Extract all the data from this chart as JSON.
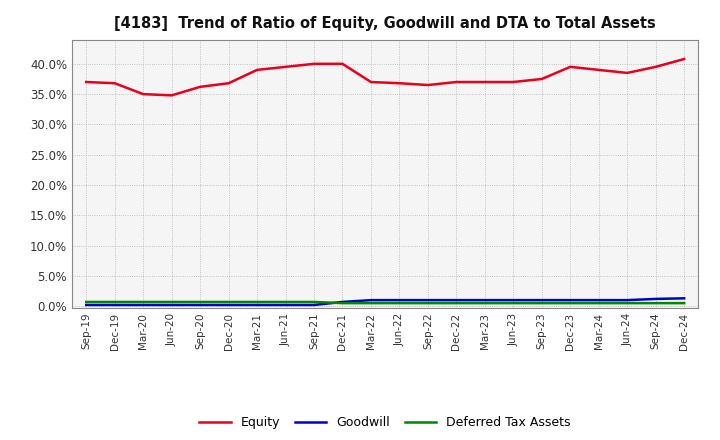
{
  "title": "[4183]  Trend of Ratio of Equity, Goodwill and DTA to Total Assets",
  "x_labels": [
    "Sep-19",
    "Dec-19",
    "Mar-20",
    "Jun-20",
    "Sep-20",
    "Dec-20",
    "Mar-21",
    "Jun-21",
    "Sep-21",
    "Dec-21",
    "Mar-22",
    "Jun-22",
    "Sep-22",
    "Dec-22",
    "Mar-23",
    "Jun-23",
    "Sep-23",
    "Dec-23",
    "Mar-24",
    "Jun-24",
    "Sep-24",
    "Dec-24"
  ],
  "equity": [
    0.37,
    0.368,
    0.35,
    0.348,
    0.362,
    0.368,
    0.39,
    0.395,
    0.4,
    0.4,
    0.37,
    0.368,
    0.365,
    0.37,
    0.37,
    0.37,
    0.375,
    0.395,
    0.39,
    0.385,
    0.395,
    0.408
  ],
  "goodwill": [
    0.002,
    0.002,
    0.002,
    0.002,
    0.002,
    0.002,
    0.002,
    0.002,
    0.002,
    0.007,
    0.01,
    0.01,
    0.01,
    0.01,
    0.01,
    0.01,
    0.01,
    0.01,
    0.01,
    0.01,
    0.012,
    0.013
  ],
  "dta": [
    0.007,
    0.007,
    0.007,
    0.007,
    0.007,
    0.007,
    0.007,
    0.007,
    0.007,
    0.005,
    0.005,
    0.005,
    0.005,
    0.005,
    0.005,
    0.005,
    0.005,
    0.005,
    0.005,
    0.005,
    0.005,
    0.005
  ],
  "equity_color": "#e8001c",
  "goodwill_color": "#0000cc",
  "dta_color": "#008800",
  "background_color": "#ffffff",
  "plot_bg_color": "#f5f5f5",
  "grid_color": "#aaaaaa",
  "ylim": [
    -0.003,
    0.44
  ],
  "yticks": [
    0.0,
    0.05,
    0.1,
    0.15,
    0.2,
    0.25,
    0.3,
    0.35,
    0.4
  ],
  "legend_labels": [
    "Equity",
    "Goodwill",
    "Deferred Tax Assets"
  ],
  "line_width": 1.8,
  "title_fontsize": 10.5
}
